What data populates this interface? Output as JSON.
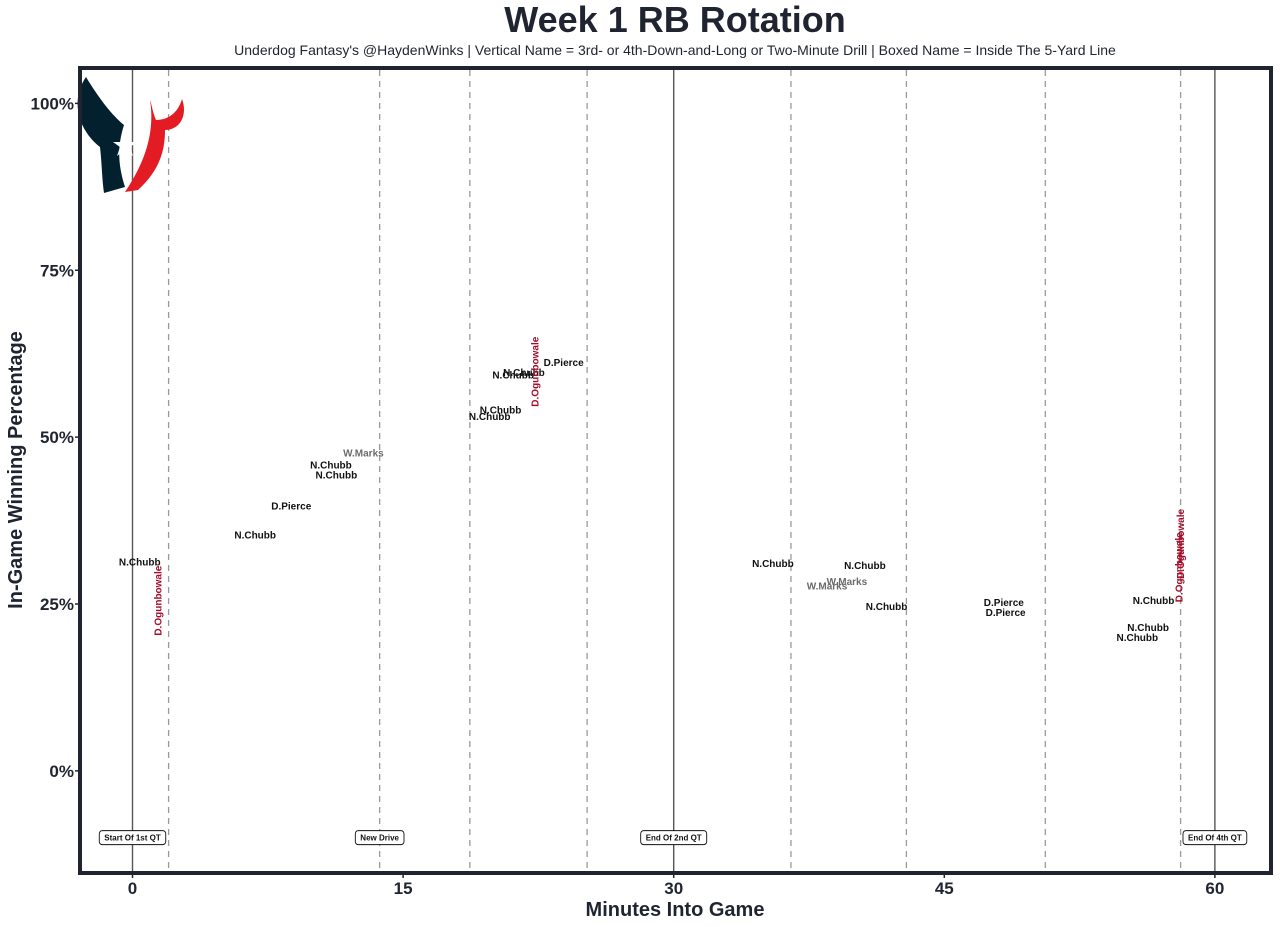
{
  "chart_data": {
    "type": "scatter",
    "title": "Week 1 RB Rotation",
    "subtitle": "Underdog Fantasy's @HaydenWinks | Vertical Name = 3rd- or 4th-Down-and-Long or Two-Minute Drill | Boxed Name = Inside The 5-Yard Line",
    "xlabel": "Minutes Into Game",
    "ylabel": "In-Game Winning Percentage",
    "xlim": [
      -2.8,
      63
    ],
    "ylim": [
      -15,
      105
    ],
    "x_ticks": [
      0,
      15,
      30,
      45,
      60
    ],
    "x_tick_labels": [
      "0",
      "15",
      "30",
      "45",
      "60"
    ],
    "y_ticks": [
      0,
      25,
      50,
      75,
      100
    ],
    "y_tick_labels": [
      "0%",
      "25%",
      "50%",
      "75%",
      "100%"
    ],
    "colors": {
      "normal": "#111111",
      "marks": "#6b6b6b",
      "vertical": "#a50d2a",
      "frame": "#1f2430",
      "logo_navy": "#03202f",
      "logo_red": "#e31b23"
    },
    "logo": "houston-texans-logo",
    "quarter_lines": [
      0,
      30,
      60
    ],
    "drive_lines": [
      2.0,
      13.7,
      18.7,
      25.2,
      36.5,
      42.9,
      50.6,
      58.1
    ],
    "annotations": [
      {
        "x": 0,
        "label": "Start Of 1st QT"
      },
      {
        "x": 13.7,
        "label": "New Drive"
      },
      {
        "x": 30,
        "label": "End Of 2nd QT"
      },
      {
        "x": 60,
        "label": "End Of 4th QT"
      }
    ],
    "annotation_y": -10,
    "points": [
      {
        "x": 0.4,
        "y": 31.3,
        "label": "N.Chubb",
        "style": "normal"
      },
      {
        "x": 1.4,
        "y": 25.5,
        "label": "D.Ogunbowale",
        "style": "vertical"
      },
      {
        "x": 6.8,
        "y": 35.3,
        "label": "N.Chubb",
        "style": "normal"
      },
      {
        "x": 8.8,
        "y": 39.7,
        "label": "D.Pierce",
        "style": "normal"
      },
      {
        "x": 11.0,
        "y": 45.8,
        "label": "N.Chubb",
        "style": "normal"
      },
      {
        "x": 11.3,
        "y": 44.3,
        "label": "N.Chubb",
        "style": "normal"
      },
      {
        "x": 12.8,
        "y": 47.6,
        "label": "W.Marks",
        "style": "marks"
      },
      {
        "x": 19.8,
        "y": 53.1,
        "label": "N.Chubb",
        "style": "normal"
      },
      {
        "x": 20.4,
        "y": 54.1,
        "label": "N.Chubb",
        "style": "normal"
      },
      {
        "x": 21.1,
        "y": 59.3,
        "label": "N.Chubb",
        "style": "normal"
      },
      {
        "x": 21.7,
        "y": 59.7,
        "label": "N.Chubb",
        "style": "normal"
      },
      {
        "x": 22.3,
        "y": 59.8,
        "label": "D.Ogunbowale",
        "style": "vertical"
      },
      {
        "x": 23.9,
        "y": 61.2,
        "label": "D.Pierce",
        "style": "normal"
      },
      {
        "x": 35.5,
        "y": 31.1,
        "label": "N.Chubb",
        "style": "normal"
      },
      {
        "x": 38.5,
        "y": 27.7,
        "label": "W.Marks",
        "style": "marks"
      },
      {
        "x": 39.6,
        "y": 28.4,
        "label": "W.Marks",
        "style": "marks"
      },
      {
        "x": 40.6,
        "y": 30.8,
        "label": "N.Chubb",
        "style": "normal"
      },
      {
        "x": 41.8,
        "y": 24.6,
        "label": "N.Chubb",
        "style": "normal"
      },
      {
        "x": 48.3,
        "y": 25.2,
        "label": "D.Pierce",
        "style": "normal"
      },
      {
        "x": 48.4,
        "y": 23.7,
        "label": "D.Pierce",
        "style": "normal"
      },
      {
        "x": 55.7,
        "y": 20.0,
        "label": "N.Chubb",
        "style": "normal"
      },
      {
        "x": 56.3,
        "y": 21.5,
        "label": "N.Chubb",
        "style": "normal"
      },
      {
        "x": 56.6,
        "y": 25.5,
        "label": "N.Chubb",
        "style": "normal"
      },
      {
        "x": 58.0,
        "y": 30.5,
        "label": "D.Ogunbowale",
        "style": "vertical"
      },
      {
        "x": 58.1,
        "y": 34.0,
        "label": "D.Ogunbowale",
        "style": "vertical"
      }
    ]
  }
}
